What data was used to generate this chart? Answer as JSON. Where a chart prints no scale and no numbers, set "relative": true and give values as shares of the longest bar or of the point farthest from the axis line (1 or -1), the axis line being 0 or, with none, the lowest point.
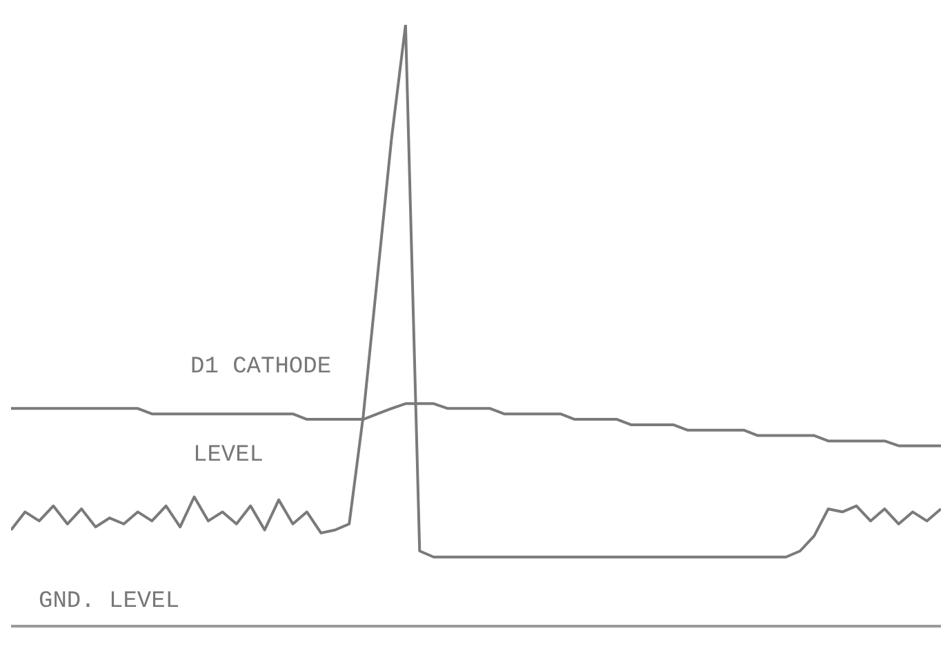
{
  "chart_data": {
    "type": "line",
    "relative": true,
    "legend": false,
    "tick_labels": false,
    "marker": "none",
    "line_style": "solid",
    "categories": [
      null,
      null,
      null,
      null,
      null,
      null,
      null,
      null,
      null,
      null,
      null,
      null,
      null,
      null,
      null,
      null,
      null,
      null,
      null,
      null,
      null,
      null,
      null,
      null,
      null,
      null,
      null,
      null,
      null,
      null,
      null,
      null,
      null,
      null,
      null,
      null,
      null,
      null,
      null,
      null,
      null,
      null,
      null,
      null,
      null,
      null,
      null,
      null,
      null,
      null,
      null,
      null,
      null,
      null,
      null,
      null,
      null,
      null,
      null,
      null,
      null,
      null,
      null,
      null,
      null,
      null,
      null
    ],
    "series": [
      {
        "color": "#7a7a7a",
        "values": [
          0.362,
          0.362,
          0.362,
          0.362,
          0.362,
          0.362,
          0.362,
          0.362,
          0.362,
          0.362,
          0.353,
          0.353,
          0.353,
          0.353,
          0.353,
          0.353,
          0.353,
          0.353,
          0.353,
          0.353,
          0.353,
          0.344,
          0.344,
          0.344,
          0.344,
          0.344,
          0.353,
          0.362,
          0.37,
          0.37,
          0.37,
          0.362,
          0.362,
          0.362,
          0.362,
          0.353,
          0.353,
          0.353,
          0.353,
          0.353,
          0.344,
          0.344,
          0.344,
          0.344,
          0.335,
          0.335,
          0.335,
          0.335,
          0.326,
          0.326,
          0.326,
          0.326,
          0.326,
          0.317,
          0.317,
          0.317,
          0.317,
          0.317,
          0.308,
          0.308,
          0.308,
          0.308,
          0.308,
          0.3,
          0.3,
          0.3,
          0.3
        ]
      },
      {
        "color": "#7a7a7a",
        "values": [
          0.16,
          0.19,
          0.175,
          0.2,
          0.17,
          0.195,
          0.165,
          0.18,
          0.17,
          0.19,
          0.175,
          0.2,
          0.165,
          0.215,
          0.175,
          0.19,
          0.17,
          0.2,
          0.16,
          0.21,
          0.17,
          0.19,
          0.155,
          0.16,
          0.17,
          0.35,
          0.58,
          0.81,
          1,
          0.125,
          0.115,
          0.115,
          0.115,
          0.115,
          0.115,
          0.115,
          0.115,
          0.115,
          0.115,
          0.115,
          0.115,
          0.115,
          0.115,
          0.115,
          0.115,
          0.115,
          0.115,
          0.115,
          0.115,
          0.115,
          0.115,
          0.115,
          0.115,
          0.115,
          0.115,
          0.115,
          0.125,
          0.15,
          0.195,
          0.19,
          0.2,
          0.175,
          0.195,
          0.17,
          0.19,
          0.175,
          0.195
        ]
      }
    ],
    "annotations": [
      "D1 CATHODE",
      "LEVEL",
      "GND. LEVEL"
    ]
  }
}
